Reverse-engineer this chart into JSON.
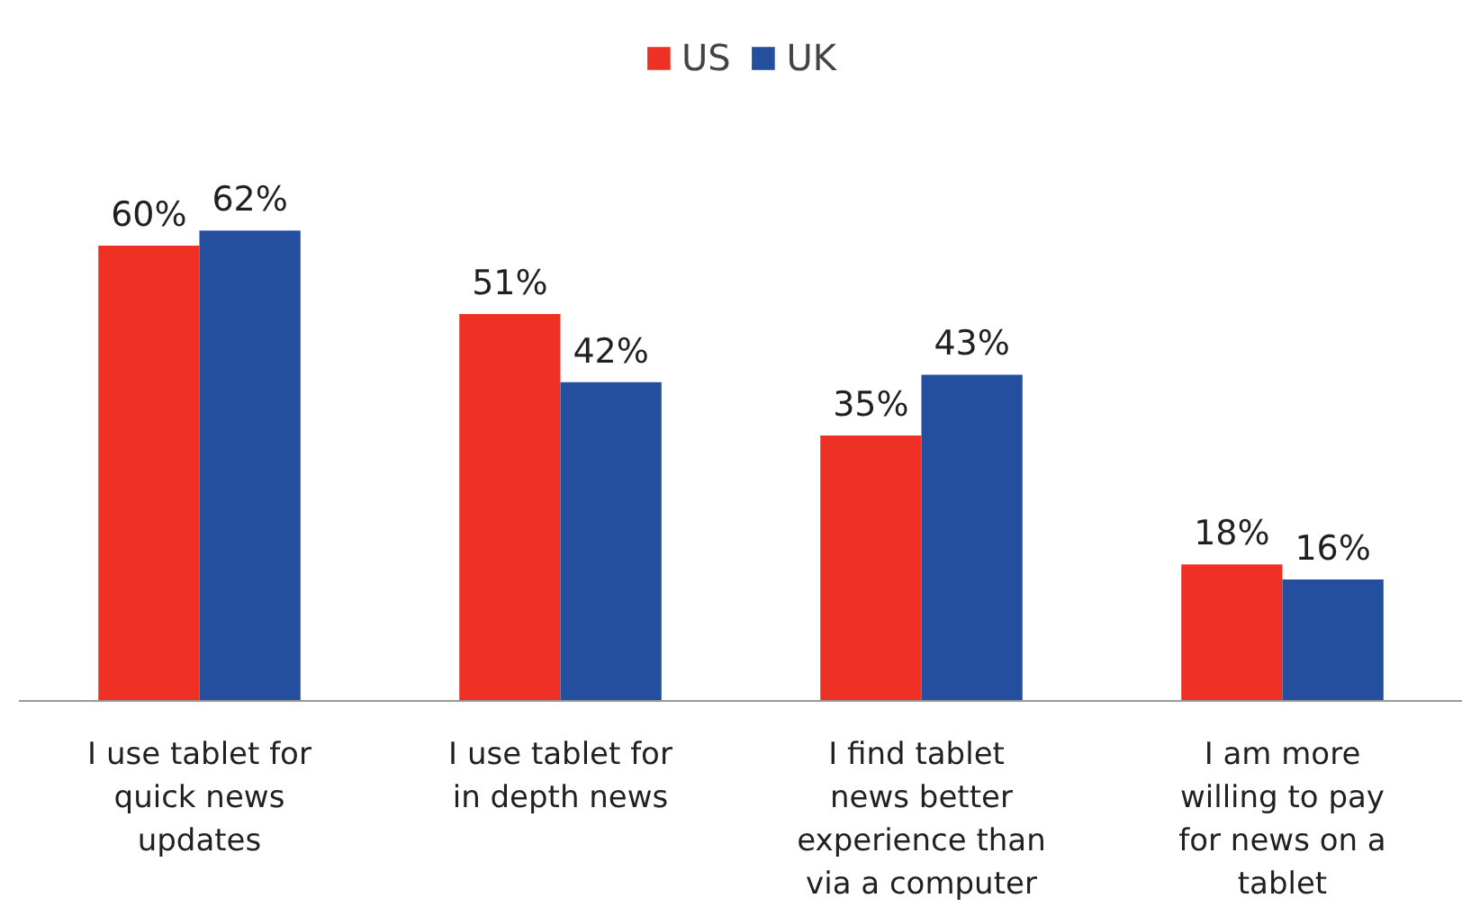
{
  "chart_data": {
    "type": "bar",
    "categories": [
      "I use tablet for quick news updates",
      "I use tablet for in depth news",
      "I  find tablet news better experience than via a computer",
      "I am more willing to pay for news on a tablet"
    ],
    "series": [
      {
        "name": "US",
        "color": "#ee3124",
        "values": [
          60,
          51,
          35,
          18
        ],
        "value_labels": [
          "60%",
          "51%",
          "35%",
          "18%"
        ]
      },
      {
        "name": "UK",
        "color": "#244f9e",
        "values": [
          62,
          42,
          43,
          16
        ],
        "value_labels": [
          "62%",
          "42%",
          "43%",
          "16%"
        ]
      }
    ],
    "legend": "top",
    "grid": false
  }
}
